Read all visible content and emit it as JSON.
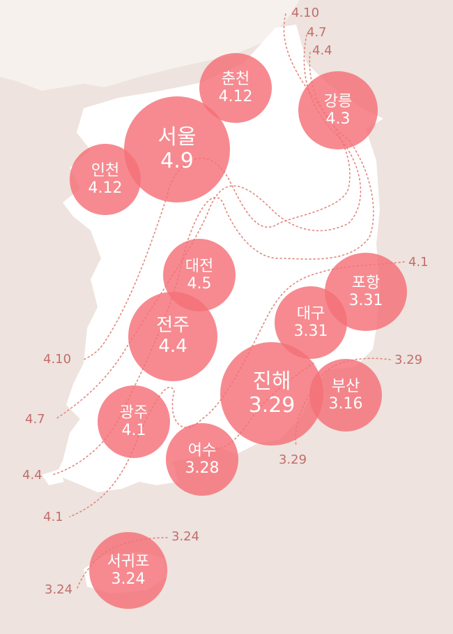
{
  "colors": {
    "background": "#eee3de",
    "land": "#ffffff",
    "circle": "#f47078",
    "label_text": "#c26d6d",
    "isoline": "#e0877c"
  },
  "cities": [
    {
      "id": "seoul",
      "name": "서울",
      "value": "4.9"
    },
    {
      "id": "incheon",
      "name": "인천",
      "value": "4.12"
    },
    {
      "id": "chuncheon",
      "name": "춘천",
      "value": "4.12"
    },
    {
      "id": "gangneung",
      "name": "강릉",
      "value": "4.3"
    },
    {
      "id": "daejeon",
      "name": "대전",
      "value": "4.5"
    },
    {
      "id": "jeonju",
      "name": "전주",
      "value": "4.4"
    },
    {
      "id": "pohang",
      "name": "포항",
      "value": "3.31"
    },
    {
      "id": "daegu",
      "name": "대구",
      "value": "3.31"
    },
    {
      "id": "jinhae",
      "name": "진해",
      "value": "3.29"
    },
    {
      "id": "busan",
      "name": "부산",
      "value": "3.16"
    },
    {
      "id": "gwangju",
      "name": "광주",
      "value": "4.1"
    },
    {
      "id": "yeosu",
      "name": "여수",
      "value": "3.28"
    },
    {
      "id": "seogwipo",
      "name": "서귀포",
      "value": "3.24"
    }
  ],
  "isoline_labels": [
    {
      "id": "top-410",
      "text": "4.10"
    },
    {
      "id": "top-47",
      "text": "4.7"
    },
    {
      "id": "top-44",
      "text": "4.4"
    },
    {
      "id": "east-41",
      "text": "4.1"
    },
    {
      "id": "east-329",
      "text": "3.29"
    },
    {
      "id": "south-329",
      "text": "3.29"
    },
    {
      "id": "west-410",
      "text": "4.10"
    },
    {
      "id": "west-47",
      "text": "4.7"
    },
    {
      "id": "west-44",
      "text": "4.4"
    },
    {
      "id": "west-41",
      "text": "4.1"
    },
    {
      "id": "jeju-324-right",
      "text": "3.24"
    },
    {
      "id": "jeju-324-left",
      "text": "3.24"
    }
  ]
}
